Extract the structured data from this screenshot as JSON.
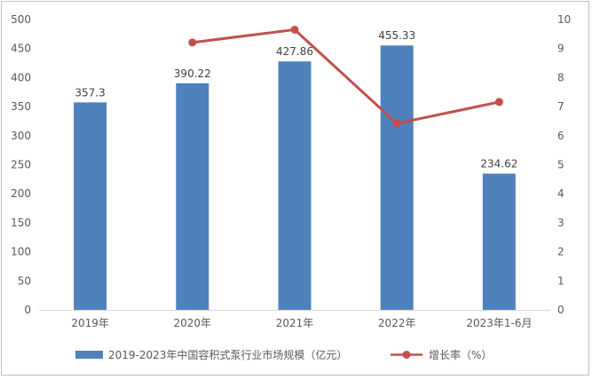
{
  "chart_data": {
    "type": "bar",
    "categories": [
      "2019年",
      "2020年",
      "2021年",
      "2022年",
      "2023年1-6月"
    ],
    "series": [
      {
        "name": "2019-2023年中国容积式泵行业市场规模（亿元）",
        "kind": "bar",
        "axis": "left",
        "values": [
          357.3,
          390.22,
          427.86,
          455.33,
          234.62
        ],
        "data_labels": [
          "357.3",
          "390.22",
          "427.86",
          "455.33",
          "234.62"
        ],
        "color": "#4f81bd"
      },
      {
        "name": "增长率（%）",
        "kind": "line",
        "axis": "right",
        "values": [
          null,
          9.21,
          9.65,
          6.42,
          7.16
        ],
        "color": "#c0504d"
      }
    ],
    "y_left": {
      "min": 0,
      "max": 500,
      "step": 50,
      "ticks": [
        "0",
        "50",
        "100",
        "150",
        "200",
        "250",
        "300",
        "350",
        "400",
        "450",
        "500"
      ]
    },
    "y_right": {
      "min": 0,
      "max": 10,
      "step": 1,
      "ticks": [
        "0",
        "1",
        "2",
        "3",
        "4",
        "5",
        "6",
        "7",
        "8",
        "9",
        "10"
      ]
    },
    "grid": false,
    "legend_position": "bottom"
  }
}
